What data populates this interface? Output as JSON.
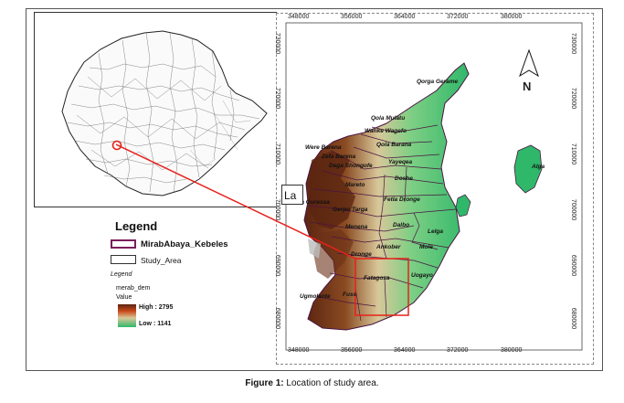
{
  "caption": {
    "label": "Figure 1:",
    "text": "Location of study area."
  },
  "main_map": {
    "x_ticks": [
      "348000",
      "356000",
      "364000",
      "372000",
      "380000"
    ],
    "y_ticks": [
      "730000",
      "720000",
      "710000",
      "700000",
      "690000",
      "680000"
    ],
    "north_label": "N",
    "kebeles": [
      "Qorga Gerame",
      "Qola Mulatu",
      "Wanke Wagefo",
      "Qola Barana",
      "Were Barena",
      "Zefa Barena",
      "Yayeqea",
      "Dega Shongofe",
      "Doshe",
      "Mareto",
      "Fetla Dronge",
      "Zala Guressa",
      "Gerpo Targa",
      "Menena",
      "Dalbo",
      "Lelga",
      "Ankober",
      "Mole",
      "Dronge",
      "Fatagosa",
      "Uogayo",
      "Ugmolante",
      "Fuss",
      "Alga"
    ],
    "zoom_box_label": "La"
  },
  "legend": {
    "title": "Legend",
    "items": [
      {
        "label": "MirabAbaya_Kebeles",
        "color": "#7a1f5c"
      },
      {
        "label": "Study_Area",
        "color": "#333333"
      }
    ],
    "sub_title": "Legend",
    "raster_name": "merab_dem",
    "value_label": "Value",
    "high_label": "High : 2795",
    "low_label": "Low : 1141"
  },
  "colors": {
    "highlight_red": "#e8201a",
    "dem_high": "#6b2a12",
    "dem_mid": "#d8c89a",
    "dem_low": "#32b86a"
  }
}
